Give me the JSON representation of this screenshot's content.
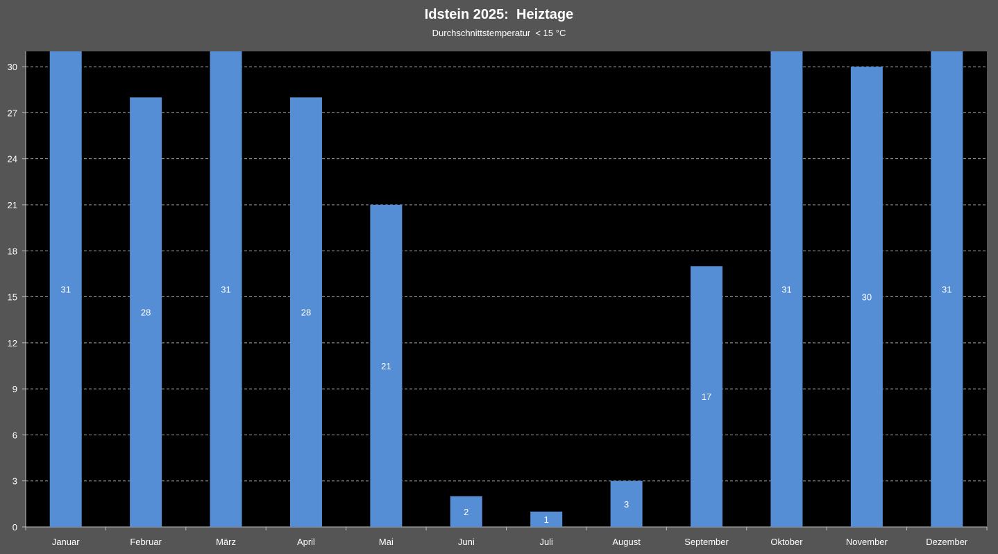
{
  "chart_data": {
    "type": "bar",
    "title": "Idstein 2025:  Heiztage",
    "subtitle": "Durchschnittstemperatur  < 15 °C",
    "xlabel": "",
    "ylabel": "",
    "categories": [
      "Januar",
      "Februar",
      "März",
      "April",
      "Mai",
      "Juni",
      "Juli",
      "August",
      "September",
      "Oktober",
      "November",
      "Dezember"
    ],
    "values": [
      31,
      28,
      31,
      28,
      21,
      2,
      1,
      3,
      17,
      31,
      30,
      31
    ],
    "ylim": [
      0,
      31
    ],
    "yticks": [
      0,
      3,
      6,
      9,
      12,
      15,
      18,
      21,
      24,
      27,
      30
    ],
    "grid": true,
    "legend": "none",
    "colors": {
      "bar": "#558ed5",
      "plot_background": "#000000",
      "chart_background": "#555555",
      "grid": "#a6a6a6",
      "text": "#ffffff"
    }
  }
}
